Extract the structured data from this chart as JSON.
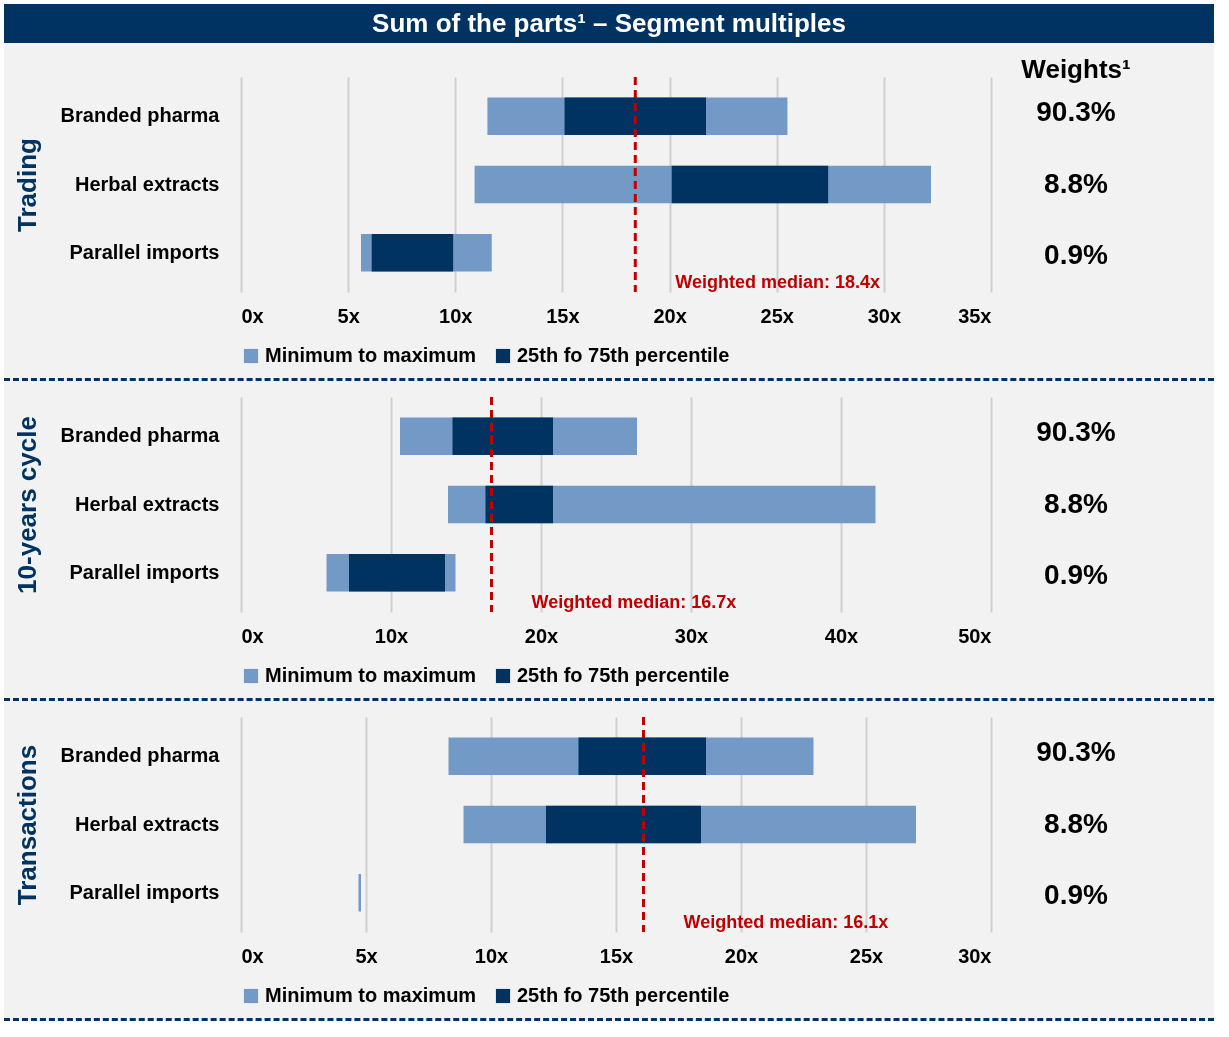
{
  "chart_data": [
    {
      "type": "bar",
      "orientation": "horizontal",
      "title": "Sum of the parts¹ – Segment multiples",
      "ylabel": "Trading",
      "categories": [
        "Branded pharma",
        "Herbal extracts",
        "Parallel imports"
      ],
      "series": [
        {
          "name": "Minimum to maximum",
          "color": "#7399c6",
          "base": [
            11.5,
            10.9,
            5.6
          ],
          "values": [
            14.0,
            21.3,
            6.1
          ]
        },
        {
          "name": "25th fo 75th percentile",
          "color": "#003361",
          "base": [
            15.1,
            20.1,
            6.1
          ],
          "values": [
            6.6,
            7.3,
            3.8
          ]
        }
      ],
      "xlim": [
        0,
        35
      ],
      "xticks": [
        {
          "value": 0,
          "label": "0x"
        },
        {
          "value": 5,
          "label": "5x"
        },
        {
          "value": 10,
          "label": "10x"
        },
        {
          "value": 15,
          "label": "15x"
        },
        {
          "value": 20,
          "label": "20x"
        },
        {
          "value": 25,
          "label": "25x"
        },
        {
          "value": 30,
          "label": "30x"
        },
        {
          "value": 35,
          "label": "35x"
        }
      ],
      "grid": "x",
      "legend": "bottom",
      "ref_lines": [
        {
          "axis": "x",
          "value": 18.4,
          "label": "Weighted median: 18.4x",
          "color": "#c00000",
          "line_style": "dashed"
        }
      ],
      "annotations": [
        "Weights¹",
        "90.3%",
        "8.8%",
        "0.9%"
      ]
    },
    {
      "type": "bar",
      "orientation": "horizontal",
      "ylabel": "10-years cycle",
      "categories": [
        "Branded pharma",
        "Herbal extracts",
        "Parallel imports"
      ],
      "series": [
        {
          "name": "Minimum to maximum",
          "color": "#7399c6",
          "base": [
            10.6,
            13.8,
            5.7
          ],
          "values": [
            15.8,
            28.5,
            8.6
          ]
        },
        {
          "name": "25th fo 75th percentile",
          "color": "#003361",
          "base": [
            14.1,
            16.3,
            7.2
          ],
          "values": [
            6.7,
            4.5,
            6.4
          ]
        }
      ],
      "xlim": [
        0,
        50
      ],
      "xticks": [
        {
          "value": 0,
          "label": "0x"
        },
        {
          "value": 10,
          "label": "10x"
        },
        {
          "value": 20,
          "label": "20x"
        },
        {
          "value": 30,
          "label": "30x"
        },
        {
          "value": 40,
          "label": "40x"
        },
        {
          "value": 50,
          "label": "50x"
        }
      ],
      "grid": "x",
      "legend": "bottom",
      "ref_lines": [
        {
          "axis": "x",
          "value": 16.7,
          "label": "Weighted median: 16.7x",
          "color": "#c00000",
          "line_style": "dashed"
        }
      ],
      "annotations": [
        "90.3%",
        "8.8%",
        "0.9%"
      ]
    },
    {
      "type": "bar",
      "orientation": "horizontal",
      "ylabel": "Transactions",
      "categories": [
        "Branded pharma",
        "Herbal extracts",
        "Parallel imports"
      ],
      "series": [
        {
          "name": "Minimum to maximum",
          "color": "#7399c6",
          "base": [
            8.3,
            8.9,
            4.7
          ],
          "values": [
            14.6,
            18.1,
            0.1
          ]
        },
        {
          "name": "25th fo 75th percentile",
          "color": "#003361",
          "base": [
            13.5,
            12.2,
            null
          ],
          "values": [
            5.1,
            6.2,
            null
          ]
        }
      ],
      "xlim": [
        0,
        30
      ],
      "xticks": [
        {
          "value": 0,
          "label": "0x"
        },
        {
          "value": 5,
          "label": "5x"
        },
        {
          "value": 10,
          "label": "10x"
        },
        {
          "value": 15,
          "label": "15x"
        },
        {
          "value": 20,
          "label": "20x"
        },
        {
          "value": 25,
          "label": "25x"
        },
        {
          "value": 30,
          "label": "30x"
        }
      ],
      "grid": "x",
      "legend": "bottom",
      "ref_lines": [
        {
          "axis": "x",
          "value": 16.1,
          "label": "Weighted median: 16.1x",
          "color": "#c00000",
          "line_style": "dashed"
        }
      ],
      "annotations": [
        "90.3%",
        "8.8%",
        "0.9%"
      ]
    }
  ]
}
